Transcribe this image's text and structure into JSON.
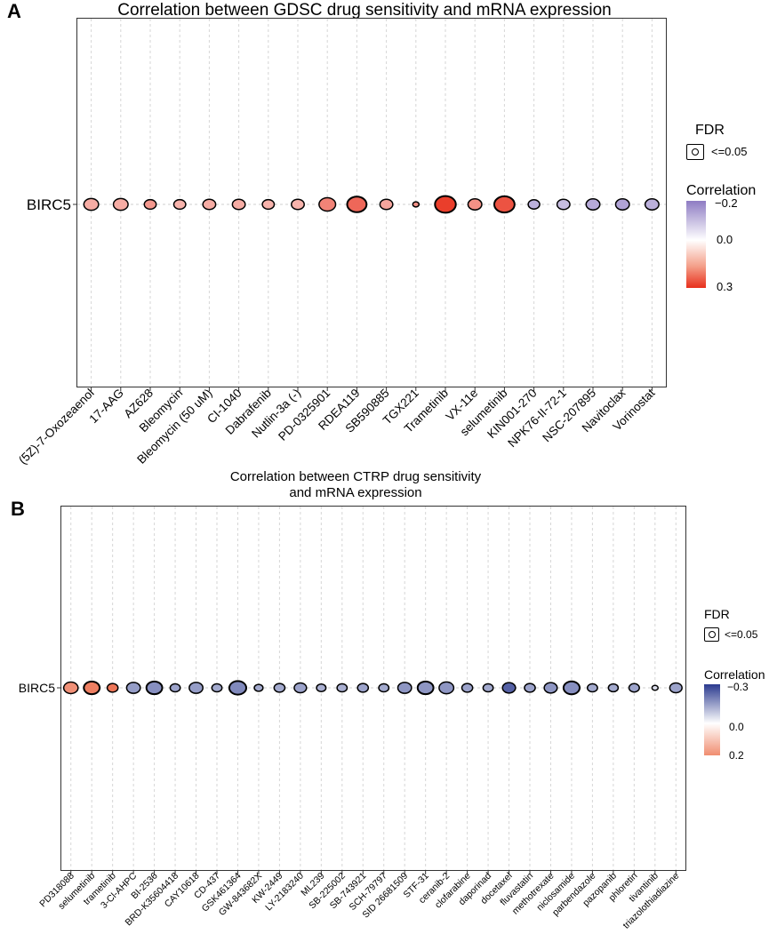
{
  "panels": {
    "a": {
      "letter": "A",
      "title": "Correlation between GDSC drug sensitivity and mRNA expression",
      "gene": "BIRC5",
      "legend": {
        "fdr_title": "FDR",
        "fdr_label": "<=0.05",
        "corr_title": "Correlation",
        "ticks": [
          "−0.2",
          "0.0",
          "0.3"
        ]
      }
    },
    "b": {
      "letter": "B",
      "title_line1": "Correlation between CTRP drug sensitivity",
      "title_line2": "and mRNA expression",
      "gene": "BIRC5",
      "legend": {
        "fdr_title": "FDR",
        "fdr_label": "<=0.05",
        "corr_title": "Correlation",
        "ticks": [
          "−0.3",
          "0.0",
          "0.2"
        ]
      }
    }
  },
  "chart_data": [
    {
      "type": "scatter",
      "title": "Correlation between GDSC drug sensitivity and mRNA expression",
      "xlabel": "",
      "ylabel": "",
      "y_categories": [
        "BIRC5"
      ],
      "color_range": [
        -0.2,
        0.3
      ],
      "size_meaning": "-log10(FDR)",
      "points": [
        {
          "drug": "(5Z)-7-Oxozeaenol",
          "corr": 0.12,
          "size": 0.55
        },
        {
          "drug": "17-AAG",
          "corr": 0.12,
          "size": 0.55
        },
        {
          "drug": "AZ628",
          "corr": 0.15,
          "size": 0.4
        },
        {
          "drug": "Bleomycin",
          "corr": 0.11,
          "size": 0.4
        },
        {
          "drug": "Bleomycin (50 uM)",
          "corr": 0.12,
          "size": 0.45
        },
        {
          "drug": "CI-1040",
          "corr": 0.12,
          "size": 0.45
        },
        {
          "drug": "Dabrafenib",
          "corr": 0.11,
          "size": 0.4
        },
        {
          "drug": "Nutlin-3a (-)",
          "corr": 0.11,
          "size": 0.45
        },
        {
          "drug": "PD-0325901",
          "corr": 0.18,
          "size": 0.65
        },
        {
          "drug": "RDEA119",
          "corr": 0.22,
          "size": 0.8
        },
        {
          "drug": "SB590885",
          "corr": 0.13,
          "size": 0.45
        },
        {
          "drug": "TGX221",
          "corr": 0.16,
          "size": 0.1
        },
        {
          "drug": "Trametinib",
          "corr": 0.28,
          "size": 0.88
        },
        {
          "drug": "VX-11e",
          "corr": 0.16,
          "size": 0.5
        },
        {
          "drug": "selumetinib",
          "corr": 0.25,
          "size": 0.85
        },
        {
          "drug": "KIN001-270",
          "corr": -0.12,
          "size": 0.38
        },
        {
          "drug": "NPK76-II-72-1",
          "corr": -0.1,
          "size": 0.45
        },
        {
          "drug": "NSC-207895",
          "corr": -0.13,
          "size": 0.5
        },
        {
          "drug": "Navitoclax",
          "corr": -0.14,
          "size": 0.5
        },
        {
          "drug": "Vorinostat",
          "corr": -0.12,
          "size": 0.5
        }
      ]
    },
    {
      "type": "scatter",
      "title": "Correlation between CTRP drug sensitivity and mRNA expression",
      "xlabel": "",
      "ylabel": "",
      "y_categories": [
        "BIRC5"
      ],
      "color_range": [
        -0.3,
        0.2
      ],
      "size_meaning": "-log10(FDR)",
      "points": [
        {
          "drug": "PD318088",
          "corr": 0.13,
          "size": 0.7
        },
        {
          "drug": "selumetinib",
          "corr": 0.15,
          "size": 0.8
        },
        {
          "drug": "trametinib",
          "corr": 0.16,
          "size": 0.45
        },
        {
          "drug": "3-Cl-AHPC",
          "corr": -0.15,
          "size": 0.65
        },
        {
          "drug": "BI-2536",
          "corr": -0.17,
          "size": 0.8
        },
        {
          "drug": "BRD-K35604418",
          "corr": -0.14,
          "size": 0.4
        },
        {
          "drug": "CAY10618",
          "corr": -0.15,
          "size": 0.65
        },
        {
          "drug": "CD-437",
          "corr": -0.13,
          "size": 0.4
        },
        {
          "drug": "GSK461364",
          "corr": -0.18,
          "size": 0.88
        },
        {
          "drug": "GW-843682X",
          "corr": -0.13,
          "size": 0.3
        },
        {
          "drug": "KW-2449",
          "corr": -0.13,
          "size": 0.45
        },
        {
          "drug": "LY-2183240",
          "corr": -0.14,
          "size": 0.55
        },
        {
          "drug": "ML239",
          "corr": -0.12,
          "size": 0.35
        },
        {
          "drug": "SB-225002",
          "corr": -0.12,
          "size": 0.4
        },
        {
          "drug": "SB-743921",
          "corr": -0.14,
          "size": 0.45
        },
        {
          "drug": "SCH-79797",
          "corr": -0.13,
          "size": 0.4
        },
        {
          "drug": "SID 26681509",
          "corr": -0.16,
          "size": 0.65
        },
        {
          "drug": "STF-31",
          "corr": -0.16,
          "size": 0.8
        },
        {
          "drug": "ceranib-2",
          "corr": -0.16,
          "size": 0.72
        },
        {
          "drug": "clofarabine",
          "corr": -0.14,
          "size": 0.45
        },
        {
          "drug": "daporinad",
          "corr": -0.13,
          "size": 0.4
        },
        {
          "drug": "docetaxel",
          "corr": -0.24,
          "size": 0.6
        },
        {
          "drug": "fluvastatin",
          "corr": -0.14,
          "size": 0.45
        },
        {
          "drug": "methotrexate",
          "corr": -0.16,
          "size": 0.6
        },
        {
          "drug": "niclosamide",
          "corr": -0.17,
          "size": 0.82
        },
        {
          "drug": "parbendazole",
          "corr": -0.13,
          "size": 0.4
        },
        {
          "drug": "pazopanib",
          "corr": -0.13,
          "size": 0.38
        },
        {
          "drug": "phloretin",
          "corr": -0.14,
          "size": 0.42
        },
        {
          "drug": "tivantinib",
          "corr": -0.05,
          "size": 0.12
        },
        {
          "drug": "triazolothiadiazine",
          "corr": -0.14,
          "size": 0.55
        }
      ]
    }
  ]
}
